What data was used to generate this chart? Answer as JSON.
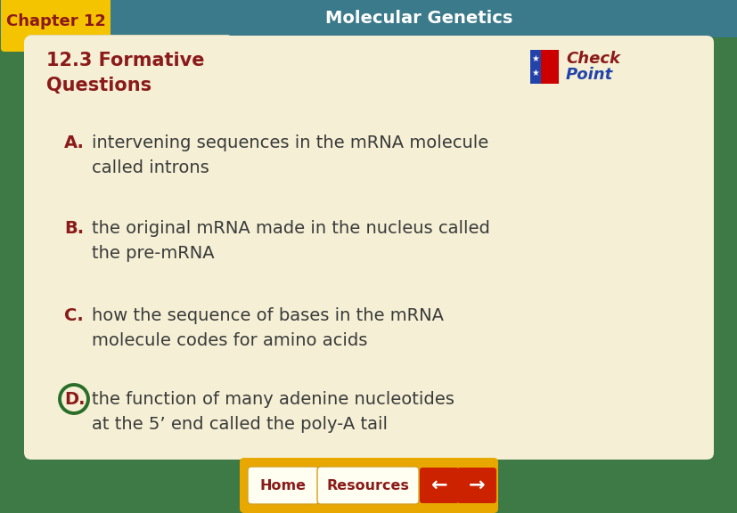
{
  "title_bar_color": "#3b7a8a",
  "chapter_label": "Chapter 12",
  "chapter_label_bg": "#f5c400",
  "chapter_label_color": "#8b1a1a",
  "title_text": "Molecular Genetics",
  "title_text_color": "#ffffff",
  "section_title_line1": "12.3 Formative",
  "section_title_line2": "Questions",
  "section_title_color": "#8b1a1a",
  "main_bg_color": "#3d7a45",
  "card_bg_color": "#f5f0d5",
  "card_tab_color": "#ddd8b8",
  "answer_letter_color": "#8b1a1a",
  "answer_text_color": "#3a3a3a",
  "answers": [
    {
      "letter": "A.",
      "line1": "intervening sequences in the mRNA molecule",
      "line2": "called introns"
    },
    {
      "letter": "B.",
      "line1": "the original mRNA made in the nucleus called",
      "line2": "the pre-mRNA"
    },
    {
      "letter": "C.",
      "line1": "how the sequence of bases in the mRNA",
      "line2": "molecule codes for amino acids"
    },
    {
      "letter": "D.",
      "line1": "the function of many adenine nucleotides",
      "line2": "at the 5’ end called the poly-A tail"
    }
  ],
  "circle_D_color": "#2a6e2a",
  "nav_bar_color": "#e8a800",
  "home_btn_bg": "#fffef0",
  "home_btn_border": "#d4a020",
  "home_text": "Home",
  "resources_text": "Resources",
  "home_text_color": "#8b1a1a",
  "resources_text_color": "#8b1a1a",
  "arrow_btn_color": "#cc2200",
  "fig_width": 8.28,
  "fig_height": 5.76
}
